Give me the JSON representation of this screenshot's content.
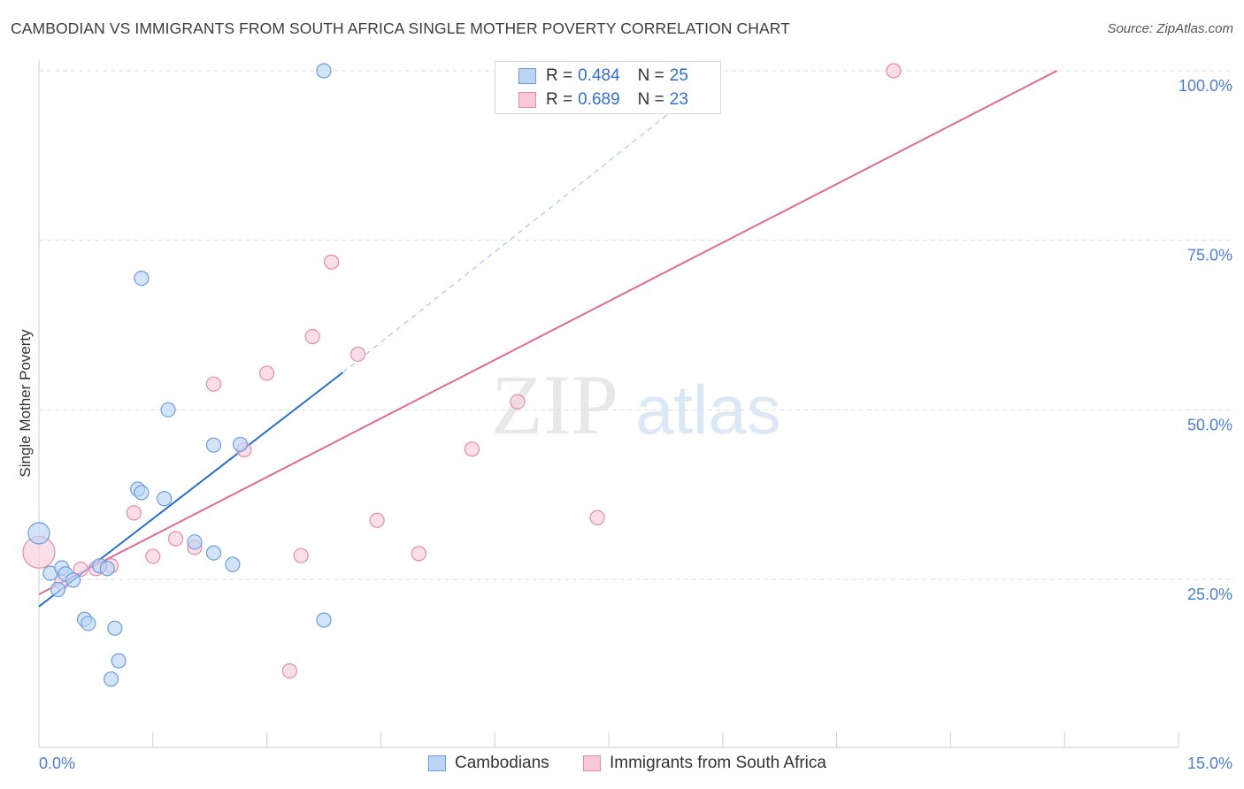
{
  "title": "CAMBODIAN VS IMMIGRANTS FROM SOUTH AFRICA SINGLE MOTHER POVERTY CORRELATION CHART",
  "source": "Source: ZipAtlas.com",
  "watermark": {
    "zip": "ZIP",
    "atlas": "atlas"
  },
  "legend": {
    "r_label": "R =",
    "n_label": "N =",
    "rows": [
      {
        "r": "0.484",
        "n": "25"
      },
      {
        "r": "0.689",
        "n": "23"
      }
    ]
  },
  "colors": {
    "cambodians_fill": "#bcd5f5",
    "cambodians_stroke": "#6a9de0",
    "cambodians_line": "#2a70cc",
    "sa_fill": "#f9c9d8",
    "sa_stroke": "#e68aa8",
    "sa_line": "#e06b96",
    "tick_label": "#4a7fd4"
  },
  "chart_data": {
    "type": "scatter",
    "xlabel": "",
    "ylabel": "Single Mother Poverty",
    "xlim": [
      0,
      15
    ],
    "ylim": [
      0,
      100
    ],
    "x_tick_labels": [
      "0.0%",
      "15.0%"
    ],
    "y_ticks": [
      25,
      50,
      75,
      100
    ],
    "y_tick_labels": [
      "25.0%",
      "50.0%",
      "75.0%",
      "100.0%"
    ],
    "grid": true,
    "legend_position": "top-center",
    "series": [
      {
        "name": "Cambodians",
        "points": [
          [
            0.0,
            31.8
          ],
          [
            0.15,
            25.9
          ],
          [
            0.3,
            26.7
          ],
          [
            0.35,
            25.8
          ],
          [
            0.45,
            24.9
          ],
          [
            0.25,
            23.5
          ],
          [
            0.6,
            19.1
          ],
          [
            0.65,
            18.5
          ],
          [
            1.0,
            17.8
          ],
          [
            0.8,
            27.0
          ],
          [
            0.9,
            26.6
          ],
          [
            1.05,
            13.0
          ],
          [
            0.95,
            10.3
          ],
          [
            1.3,
            38.3
          ],
          [
            1.35,
            37.8
          ],
          [
            1.65,
            36.9
          ],
          [
            1.35,
            69.4
          ],
          [
            1.7,
            50.0
          ],
          [
            2.05,
            30.5
          ],
          [
            2.3,
            28.9
          ],
          [
            2.3,
            44.8
          ],
          [
            2.55,
            27.2
          ],
          [
            2.65,
            44.9
          ],
          [
            3.75,
            19.0
          ],
          [
            3.75,
            100.0
          ]
        ],
        "trend": {
          "x": [
            0.0,
            4.0
          ],
          "y": [
            21.0,
            55.5
          ]
        },
        "trend_extension": {
          "x": [
            4.0,
            9.0
          ],
          "y": [
            55.5,
            100.0
          ]
        }
      },
      {
        "name": "Immigrants from South Africa",
        "points": [
          [
            0.0,
            29.0
          ],
          [
            0.55,
            26.5
          ],
          [
            0.75,
            26.6
          ],
          [
            0.95,
            27.0
          ],
          [
            1.25,
            34.8
          ],
          [
            1.5,
            28.4
          ],
          [
            1.8,
            31.0
          ],
          [
            2.05,
            29.7
          ],
          [
            2.3,
            53.8
          ],
          [
            2.7,
            44.1
          ],
          [
            3.0,
            55.4
          ],
          [
            3.3,
            11.5
          ],
          [
            3.45,
            28.5
          ],
          [
            3.6,
            60.8
          ],
          [
            3.85,
            71.8
          ],
          [
            4.2,
            58.2
          ],
          [
            4.45,
            33.7
          ],
          [
            5.0,
            28.8
          ],
          [
            5.7,
            44.2
          ],
          [
            6.3,
            51.2
          ],
          [
            7.35,
            34.1
          ],
          [
            11.25,
            100.0
          ],
          [
            0.3,
            24.6
          ]
        ],
        "trend": {
          "x": [
            0.0,
            13.4
          ],
          "y": [
            22.8,
            100.0
          ]
        }
      }
    ]
  }
}
